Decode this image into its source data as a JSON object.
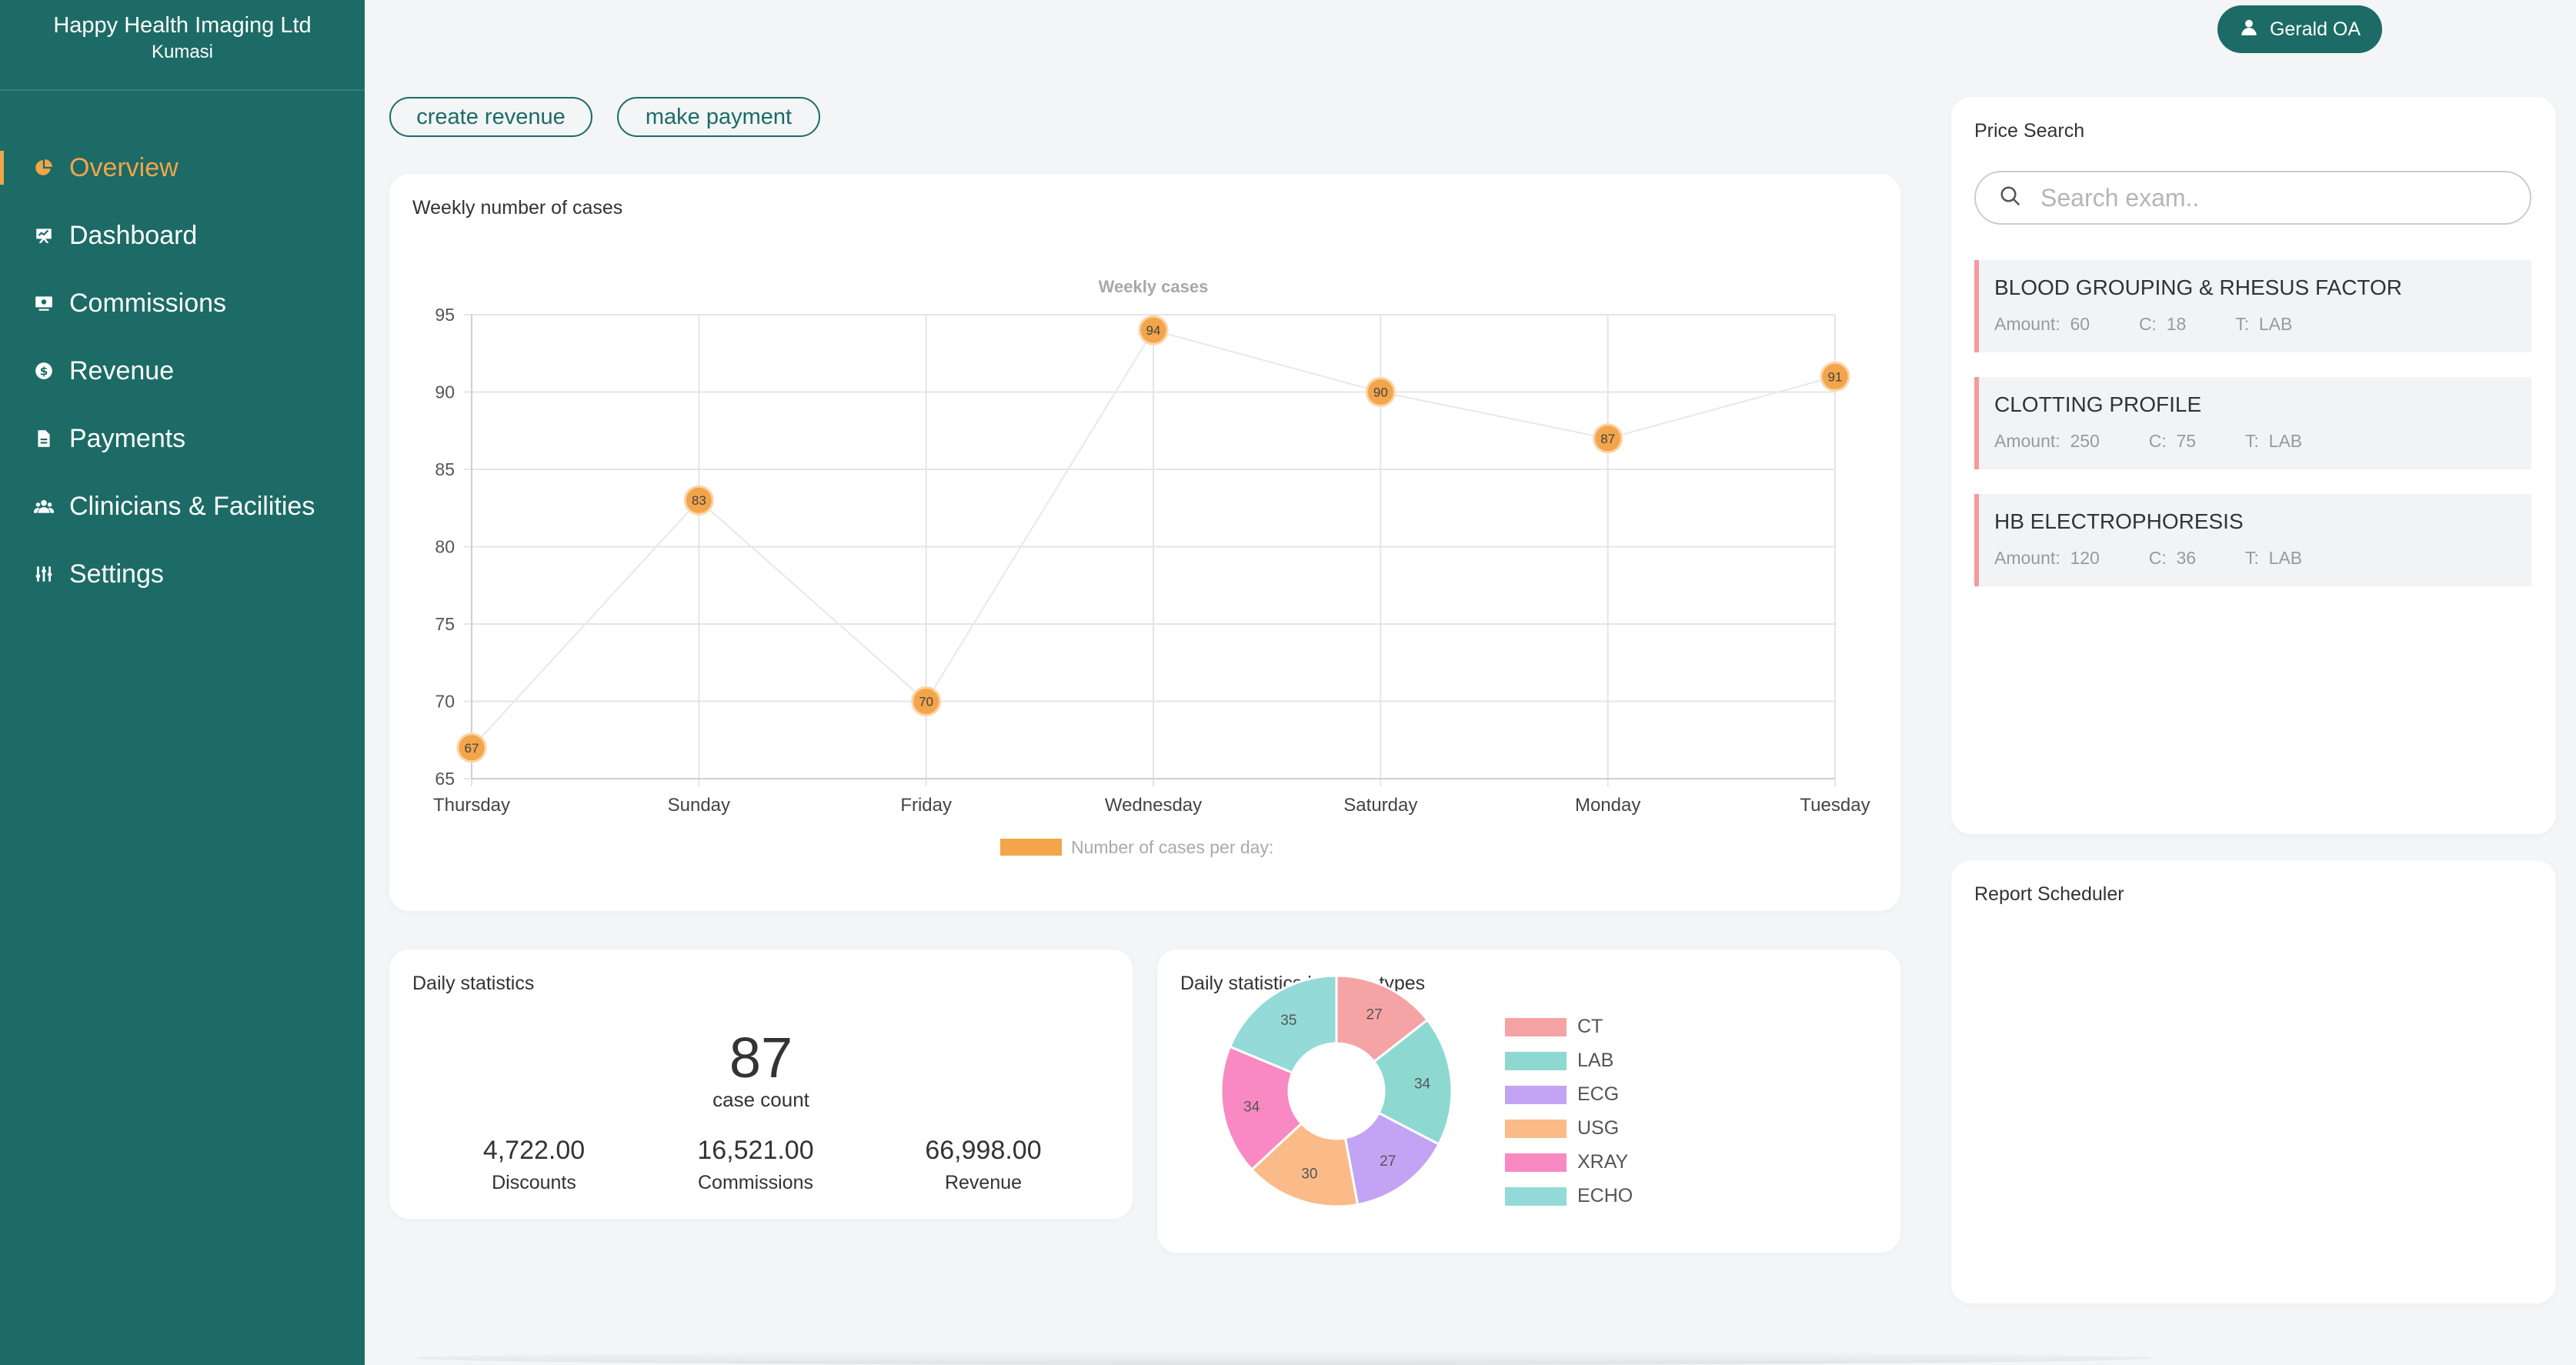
{
  "brand": {
    "name": "Happy Health Imaging Ltd",
    "location": "Kumasi"
  },
  "sidebar": {
    "items": [
      {
        "label": "Overview",
        "icon": "pie-chart-icon",
        "active": true
      },
      {
        "label": "Dashboard",
        "icon": "chart-board-icon",
        "active": false
      },
      {
        "label": "Commissions",
        "icon": "monitor-icon",
        "active": false
      },
      {
        "label": "Revenue",
        "icon": "dollar-circle-icon",
        "active": false
      },
      {
        "label": "Payments",
        "icon": "document-icon",
        "active": false
      },
      {
        "label": "Clinicians & Facilities",
        "icon": "users-icon",
        "active": false
      },
      {
        "label": "Settings",
        "icon": "sliders-icon",
        "active": false
      }
    ],
    "colors": {
      "background": "#1c6b66",
      "active": "#f2a54a"
    }
  },
  "header": {
    "user_name": "Gerald OA"
  },
  "actions": {
    "create_revenue": "create revenue",
    "make_payment": "make payment"
  },
  "weekly_card": {
    "title": "Weekly number of cases"
  },
  "daily_stats": {
    "title": "Daily statistics",
    "case_count": "87",
    "case_count_label": "case count",
    "discounts": "4,722.00",
    "discounts_label": "Discounts",
    "commissions": "16,521.00",
    "commissions_label": "Commissions",
    "revenue": "66,998.00",
    "revenue_label": "Revenue"
  },
  "case_types_card": {
    "title": "Daily statistics by case types"
  },
  "price_search": {
    "title": "Price Search",
    "placeholder": "Search exam..",
    "results": [
      {
        "name": "BLOOD GROUPING & RHESUS FACTOR",
        "amount_label": "Amount:",
        "amount": "60",
        "c_label": "C:",
        "c": "18",
        "t_label": "T:",
        "t": "LAB"
      },
      {
        "name": "CLOTTING PROFILE",
        "amount_label": "Amount:",
        "amount": "250",
        "c_label": "C:",
        "c": "75",
        "t_label": "T:",
        "t": "LAB"
      },
      {
        "name": "HB ELECTROPHORESIS",
        "amount_label": "Amount:",
        "amount": "120",
        "c_label": "C:",
        "c": "36",
        "t_label": "T:",
        "t": "LAB"
      }
    ]
  },
  "report_scheduler": {
    "title": "Report Scheduler"
  },
  "chart_data": [
    {
      "type": "line",
      "title": "Weekly cases",
      "categories": [
        "Thursday",
        "Sunday",
        "Friday",
        "Wednesday",
        "Saturday",
        "Monday",
        "Tuesday"
      ],
      "series": [
        {
          "name": "Number of cases per day:",
          "values": [
            67,
            83,
            70,
            94,
            90,
            87,
            91
          ],
          "color": "#f2a54a"
        }
      ],
      "ylim": [
        65,
        95
      ],
      "yticks": [
        65,
        70,
        75,
        80,
        85,
        90,
        95
      ],
      "grid": true,
      "legend": "bottom"
    },
    {
      "type": "pie",
      "donut": true,
      "categories": [
        "CT",
        "LAB",
        "ECG",
        "USG",
        "XRAY",
        "ECHO"
      ],
      "values": [
        27,
        34,
        27,
        30,
        34,
        35
      ],
      "colors": [
        "#f6a3a5",
        "#8ed8d2",
        "#c3a3f3",
        "#fbbb88",
        "#f989c2",
        "#93dad8"
      ],
      "legend": "right"
    }
  ]
}
